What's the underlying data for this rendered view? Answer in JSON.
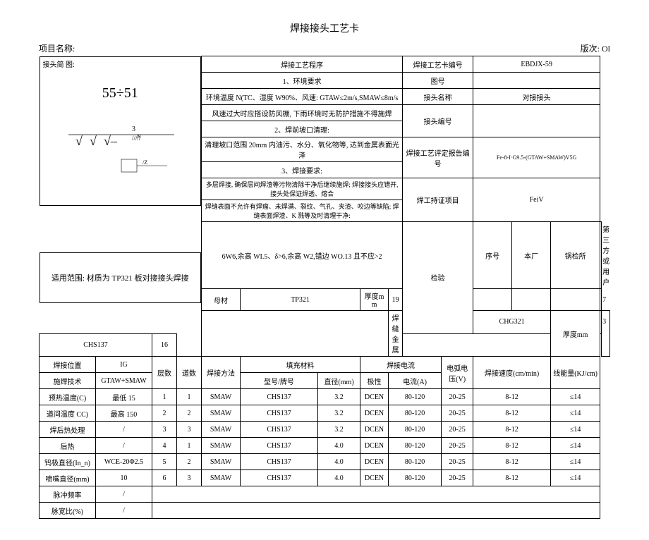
{
  "title": "焊接接头工艺卡",
  "header": {
    "project_label": "项目名称:",
    "revision": "版次: Ol"
  },
  "sketch": {
    "label": "接头简 图:",
    "math": "55÷51",
    "scope": "适用范围: 材质为 TP321 板对接接头焊接"
  },
  "proc": {
    "heading": "焊接工艺程序",
    "card_no_label": "焊接工艺卡编号",
    "card_no": "EBDJX-59",
    "item1": "1、环境要求",
    "drawing_label": "图号",
    "drawing_no": "",
    "env_temp": "环境温度 N(TC、湿度 W90%、风速: GTAW≤2m/s,SMAW≤8m/s",
    "joint_name_label": "接头名称",
    "joint_name": "对接接头",
    "wind": "风速过大时应搭设防风棚, 下雨环境时无防护措施不得施焊",
    "joint_code_label": "接头编号",
    "joint_code": "",
    "item2": "2、焊前坡口清理:",
    "clean1": "清理坡口范围 20mm 内油污、水分、氧化物等, 达到金属表面光泽",
    "pqr_label": "焊接工艺评定报告编号",
    "pqr_no": "Fe-8-I·G9.5-(GTAW+SMAW)V5G",
    "item3": "3、焊接要求:",
    "req1": "多层焊接, 确保层间焊渣等污物清除干净后继续施焊; 焊接接头应错开, 接头处保证焊透、熔合",
    "req2": "焊缝表面不允许有焊瘤、未焊满、裂纹、气孔、夹渣、咬边等缺陷; 焊缝表面焊渣、K 溅等及时清理干净:",
    "cert_label": "焊工持证项目",
    "cert": "FeiV",
    "dims": "6W6,余高 WI.5、δ>6,余高 W2,错边 WO.13 且不应>2"
  },
  "materials": {
    "base_label": "母材",
    "base_val": "TP321",
    "thick_label": "厚度mm",
    "thick_val": "19",
    "insp_label": "检验",
    "seq_label": "序号",
    "factory_label": "本厂",
    "boiler_label": "锅检所",
    "third_label": "第三方或用户",
    "seq_val": "",
    "third_val": "7",
    "wire_label": "焊缝金属",
    "wire_val1": "CHG321",
    "wire_thick": "3",
    "wire_val2": "CHS137",
    "wire_thick2": "16"
  },
  "params_header": {
    "pos_label": "焊接位置",
    "pos_val": "IG",
    "layers_label": "层数",
    "passes_label": "道数",
    "method_label": "焊接方法",
    "filler_label": "填充材料",
    "model_label": "型号/牌号",
    "dia_label": "直径(mm)",
    "current_label": "焊接电流",
    "polarity_label": "极性",
    "current_a_label": "电流(A)",
    "voltage_label": "电弧电压(V)",
    "speed_label": "焊接速度(cm/min)",
    "heat_label": "线能量(KJ/cm)",
    "tech_label": "施焊技术",
    "tech_val": "GTAW+SMAW"
  },
  "side_params": [
    {
      "label": "预热温度(C)",
      "val": "最低 15"
    },
    {
      "label": "道间温度 CC)",
      "val": "最高 150"
    },
    {
      "label": "焊后热处理",
      "val": "/"
    },
    {
      "label": "后热",
      "val": "/"
    },
    {
      "label": "钨极直径(In_n)",
      "val": "WCE-20Φ2.5"
    },
    {
      "label": "喷嘴直径(mm)",
      "val": "10"
    },
    {
      "label": "脉冲频率",
      "val": "/"
    },
    {
      "label": "脉宽比(%)",
      "val": "/"
    }
  ],
  "rows": [
    {
      "layer": "1",
      "pass": "1",
      "method": "SMAW",
      "model": "CHS137",
      "dia": "3.2",
      "pol": "DCEN",
      "cur": "80-120",
      "volt": "20-25",
      "speed": "8-12",
      "heat": "≤14"
    },
    {
      "layer": "2",
      "pass": "2",
      "method": "SMAW",
      "model": "CHS137",
      "dia": "3.2",
      "pol": "DCEN",
      "cur": "80-120",
      "volt": "20-25",
      "speed": "8-12",
      "heat": "≤14"
    },
    {
      "layer": "3",
      "pass": "3",
      "method": "SMAW",
      "model": "CHS137",
      "dia": "3.2",
      "pol": "DCEN",
      "cur": "80-120",
      "volt": "20-25",
      "speed": "8-12",
      "heat": "≤14"
    },
    {
      "layer": "4",
      "pass": "1",
      "method": "SMAW",
      "model": "CHS137",
      "dia": "4.0",
      "pol": "DCEN",
      "cur": "80-120",
      "volt": "20-25",
      "speed": "8-12",
      "heat": "≤14"
    },
    {
      "layer": "5",
      "pass": "2",
      "method": "SMAW",
      "model": "CHS137",
      "dia": "4.0",
      "pol": "DCEN",
      "cur": "80-120",
      "volt": "20-25",
      "speed": "8-12",
      "heat": "≤14"
    },
    {
      "layer": "6",
      "pass": "3",
      "method": "SMAW",
      "model": "CHS137",
      "dia": "4.0",
      "pol": "DCEN",
      "cur": "80-120",
      "volt": "20-25",
      "speed": "8-12",
      "heat": "≤14"
    }
  ]
}
